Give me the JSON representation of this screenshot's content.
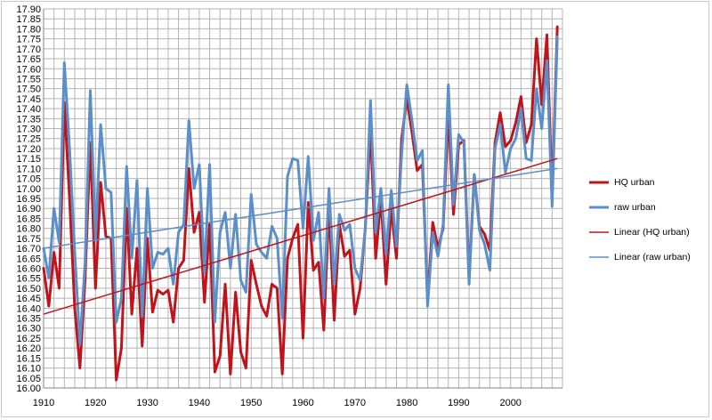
{
  "chart_data": {
    "type": "line",
    "title": "",
    "xlabel": "",
    "ylabel": "",
    "xlim": [
      1910,
      2010
    ],
    "ylim": [
      16.0,
      17.9
    ],
    "x_ticks": [
      1910,
      1920,
      1930,
      1940,
      1950,
      1960,
      1970,
      1980,
      1990,
      2000
    ],
    "y_ticks": [
      16.0,
      16.05,
      16.1,
      16.15,
      16.2,
      16.25,
      16.3,
      16.35,
      16.4,
      16.45,
      16.5,
      16.55,
      16.6,
      16.65,
      16.7,
      16.75,
      16.8,
      16.85,
      16.9,
      16.95,
      17.0,
      17.05,
      17.1,
      17.15,
      17.2,
      17.25,
      17.3,
      17.35,
      17.4,
      17.45,
      17.5,
      17.55,
      17.6,
      17.65,
      17.7,
      17.75,
      17.8,
      17.85,
      17.9
    ],
    "grid": true,
    "legend_position": "right",
    "x": [
      1910,
      1911,
      1912,
      1913,
      1914,
      1915,
      1916,
      1917,
      1918,
      1919,
      1920,
      1921,
      1922,
      1923,
      1924,
      1925,
      1926,
      1927,
      1928,
      1929,
      1930,
      1931,
      1932,
      1933,
      1934,
      1935,
      1936,
      1937,
      1938,
      1939,
      1940,
      1941,
      1942,
      1943,
      1944,
      1945,
      1946,
      1947,
      1948,
      1949,
      1950,
      1951,
      1952,
      1953,
      1954,
      1955,
      1956,
      1957,
      1958,
      1959,
      1960,
      1961,
      1962,
      1963,
      1964,
      1965,
      1966,
      1967,
      1968,
      1969,
      1970,
      1971,
      1972,
      1973,
      1974,
      1975,
      1976,
      1977,
      1978,
      1979,
      1980,
      1981,
      1982,
      1983,
      1984,
      1985,
      1986,
      1987,
      1988,
      1989,
      1990,
      1991,
      1992,
      1993,
      1994,
      1995,
      1996,
      1997,
      1998,
      1999,
      2000,
      2001,
      2002,
      2003,
      2004,
      2005,
      2006,
      2007,
      2008,
      2009
    ],
    "series": [
      {
        "name": "HQ urban",
        "color": "#c0141c",
        "width": 3,
        "values": [
          16.6,
          16.41,
          16.68,
          16.5,
          17.43,
          16.95,
          16.4,
          16.1,
          16.55,
          17.23,
          16.5,
          17.03,
          16.76,
          16.75,
          16.04,
          16.2,
          16.9,
          16.37,
          16.7,
          16.21,
          16.75,
          16.38,
          16.49,
          16.47,
          16.49,
          16.33,
          16.6,
          16.64,
          17.1,
          16.78,
          16.88,
          16.43,
          16.82,
          16.08,
          16.16,
          16.52,
          16.07,
          16.48,
          16.18,
          16.1,
          16.64,
          16.52,
          16.41,
          16.36,
          16.52,
          16.5,
          16.07,
          16.65,
          16.75,
          16.82,
          16.25,
          16.93,
          16.59,
          16.63,
          16.29,
          16.91,
          16.34,
          16.82,
          16.66,
          16.69,
          16.37,
          16.5,
          16.8,
          17.3,
          16.65,
          16.95,
          16.52,
          16.9,
          16.65,
          17.25,
          17.45,
          17.28,
          17.09,
          17.12,
          16.45,
          16.83,
          16.7,
          16.8,
          17.38,
          16.87,
          17.22,
          17.24,
          16.55,
          17.07,
          16.81,
          16.77,
          16.69,
          17.23,
          17.38,
          17.21,
          17.24,
          17.33,
          17.46,
          17.23,
          17.32,
          17.75,
          17.42,
          17.77,
          16.96,
          17.81
        ]
      },
      {
        "name": "raw urban",
        "color": "#5b8fc9",
        "width": 3,
        "values": [
          16.7,
          16.55,
          16.9,
          16.73,
          17.63,
          17.2,
          16.68,
          16.22,
          16.63,
          17.49,
          16.75,
          17.32,
          17.0,
          16.98,
          16.33,
          16.45,
          17.11,
          16.65,
          17.04,
          16.36,
          17.0,
          16.6,
          16.68,
          16.67,
          16.7,
          16.52,
          16.78,
          16.82,
          17.34,
          17.0,
          17.12,
          16.58,
          17.12,
          16.33,
          16.78,
          16.88,
          16.6,
          16.87,
          16.54,
          16.48,
          16.97,
          16.72,
          16.68,
          16.65,
          16.81,
          16.75,
          16.35,
          17.06,
          17.15,
          17.14,
          16.8,
          17.16,
          16.74,
          16.88,
          16.45,
          17.0,
          16.52,
          16.87,
          16.79,
          16.82,
          16.6,
          16.54,
          16.8,
          17.44,
          16.78,
          17.0,
          16.67,
          16.99,
          16.71,
          17.17,
          17.52,
          17.34,
          17.14,
          17.19,
          16.41,
          16.78,
          16.66,
          16.82,
          17.52,
          16.92,
          17.27,
          17.23,
          16.52,
          17.07,
          16.79,
          16.72,
          16.59,
          17.2,
          17.32,
          17.08,
          17.2,
          17.25,
          17.4,
          17.15,
          17.14,
          17.5,
          17.3,
          17.64,
          16.91,
          17.76
        ]
      },
      {
        "name": "Linear (HQ urban)",
        "color": "#c0141c",
        "width": 1.5,
        "trend_from": [
          1910,
          16.37
        ],
        "trend_to": [
          2009,
          17.15
        ]
      },
      {
        "name": "Linear (raw urban)",
        "color": "#5b8fc9",
        "width": 1.5,
        "trend_from": [
          1910,
          16.7
        ],
        "trend_to": [
          2009,
          17.1
        ]
      }
    ]
  }
}
